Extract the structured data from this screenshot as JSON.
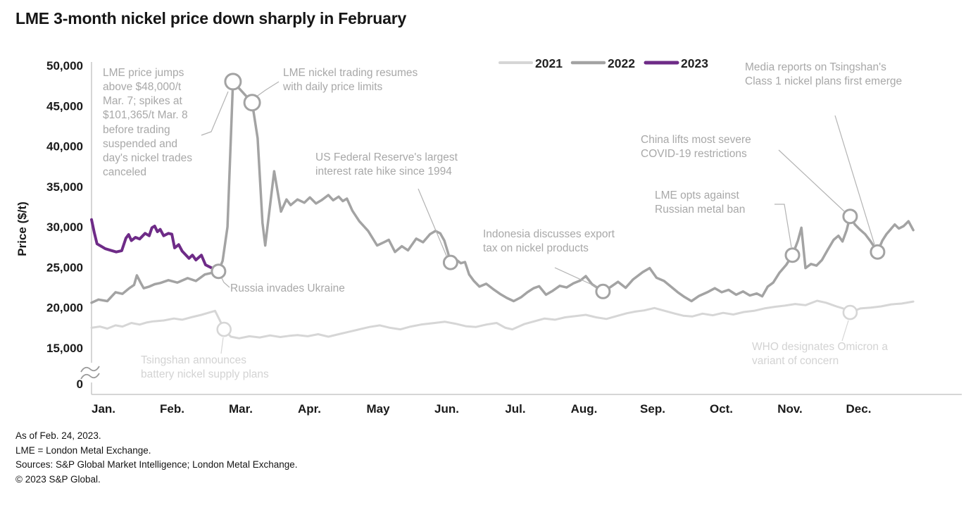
{
  "title": "LME 3-month nickel price down sharply in February",
  "colors": {
    "s2021": "#d6d6d6",
    "s2022": "#a3a3a3",
    "s2023": "#6e2b87",
    "axis": "#c9c9c9",
    "break_mark": "#9a9a9a",
    "text": "#1a1a1a",
    "annotation": "#a8a8a8",
    "annotation_light": "#d3d3d3",
    "leader": "#b3b3b3",
    "leader_light": "#d6d6d6"
  },
  "footer": {
    "lines": [
      "As of Feb. 24, 2023.",
      "LME = London Metal Exchange.",
      "Sources: S&P Global Market Intelligence; London Metal Exchange.",
      "© 2023 S&P Global."
    ]
  },
  "chart_data": {
    "type": "line",
    "title": "LME 3-month nickel price down sharply in February",
    "ylabel": "Price ($/t)",
    "xlabel": "",
    "ylim": [
      0,
      50000
    ],
    "axis_break": "between 0 and 15,000",
    "grid": false,
    "legend_position": "top-right",
    "y_ticks": [
      {
        "label": "50,000",
        "value": 50000
      },
      {
        "label": "45,000",
        "value": 45000
      },
      {
        "label": "40,000",
        "value": 40000
      },
      {
        "label": "35,000",
        "value": 35000
      },
      {
        "label": "30,000",
        "value": 30000
      },
      {
        "label": "25,000",
        "value": 25000
      },
      {
        "label": "20,000",
        "value": 20000
      },
      {
        "label": "15,000",
        "value": 15000
      },
      {
        "label": "0",
        "value": 0
      }
    ],
    "x_labels": [
      "Jan.",
      "Feb.",
      "Mar.",
      "Apr.",
      "May",
      "Jun.",
      "Jul.",
      "Aug.",
      "Sep.",
      "Oct.",
      "Nov.",
      "Dec."
    ],
    "series": [
      {
        "name": "2021",
        "color": "#d6d6d6",
        "width": 3,
        "points": [
          [
            0.0,
            17500
          ],
          [
            0.12,
            17650
          ],
          [
            0.23,
            17400
          ],
          [
            0.35,
            17800
          ],
          [
            0.45,
            17650
          ],
          [
            0.58,
            18100
          ],
          [
            0.7,
            17900
          ],
          [
            0.8,
            18150
          ],
          [
            0.9,
            18300
          ],
          [
            1.05,
            18400
          ],
          [
            1.2,
            18650
          ],
          [
            1.32,
            18500
          ],
          [
            1.45,
            18800
          ],
          [
            1.6,
            19100
          ],
          [
            1.72,
            19400
          ],
          [
            1.8,
            19600
          ],
          [
            1.87,
            18400
          ],
          [
            1.93,
            17300
          ],
          [
            2.03,
            16400
          ],
          [
            2.15,
            16200
          ],
          [
            2.3,
            16450
          ],
          [
            2.45,
            16300
          ],
          [
            2.6,
            16550
          ],
          [
            2.75,
            16350
          ],
          [
            2.88,
            16500
          ],
          [
            3.0,
            16600
          ],
          [
            3.15,
            16450
          ],
          [
            3.3,
            16700
          ],
          [
            3.45,
            16400
          ],
          [
            3.6,
            16700
          ],
          [
            3.75,
            17000
          ],
          [
            3.9,
            17300
          ],
          [
            4.05,
            17600
          ],
          [
            4.2,
            17800
          ],
          [
            4.35,
            17500
          ],
          [
            4.5,
            17300
          ],
          [
            4.65,
            17650
          ],
          [
            4.8,
            17900
          ],
          [
            5.0,
            18100
          ],
          [
            5.15,
            18250
          ],
          [
            5.3,
            18000
          ],
          [
            5.45,
            17700
          ],
          [
            5.6,
            17600
          ],
          [
            5.75,
            17900
          ],
          [
            5.9,
            18100
          ],
          [
            6.03,
            17500
          ],
          [
            6.13,
            17300
          ],
          [
            6.3,
            17950
          ],
          [
            6.45,
            18300
          ],
          [
            6.6,
            18650
          ],
          [
            6.75,
            18500
          ],
          [
            6.9,
            18800
          ],
          [
            7.05,
            18950
          ],
          [
            7.2,
            19100
          ],
          [
            7.35,
            18800
          ],
          [
            7.5,
            18600
          ],
          [
            7.65,
            18950
          ],
          [
            7.8,
            19300
          ],
          [
            7.92,
            19500
          ],
          [
            8.05,
            19650
          ],
          [
            8.2,
            19950
          ],
          [
            8.35,
            19600
          ],
          [
            8.5,
            19250
          ],
          [
            8.62,
            19000
          ],
          [
            8.75,
            18900
          ],
          [
            8.9,
            19250
          ],
          [
            9.05,
            19050
          ],
          [
            9.2,
            19350
          ],
          [
            9.35,
            19150
          ],
          [
            9.5,
            19450
          ],
          [
            9.65,
            19600
          ],
          [
            9.8,
            19900
          ],
          [
            9.95,
            20100
          ],
          [
            10.1,
            20250
          ],
          [
            10.25,
            20450
          ],
          [
            10.4,
            20300
          ],
          [
            10.57,
            20850
          ],
          [
            10.7,
            20600
          ],
          [
            10.85,
            20150
          ],
          [
            10.95,
            19900
          ],
          [
            11.05,
            19400
          ],
          [
            11.2,
            19900
          ],
          [
            11.35,
            20000
          ],
          [
            11.5,
            20150
          ],
          [
            11.65,
            20400
          ],
          [
            11.8,
            20500
          ],
          [
            11.97,
            20750
          ]
        ]
      },
      {
        "name": "2022",
        "color": "#a3a3a3",
        "width": 3.5,
        "points": [
          [
            0.0,
            20600
          ],
          [
            0.1,
            21000
          ],
          [
            0.23,
            20800
          ],
          [
            0.35,
            21900
          ],
          [
            0.45,
            21700
          ],
          [
            0.55,
            22400
          ],
          [
            0.62,
            22800
          ],
          [
            0.66,
            24000
          ],
          [
            0.72,
            23000
          ],
          [
            0.76,
            22400
          ],
          [
            0.84,
            22600
          ],
          [
            0.92,
            22900
          ],
          [
            1.0,
            23050
          ],
          [
            1.12,
            23400
          ],
          [
            1.25,
            23100
          ],
          [
            1.4,
            23650
          ],
          [
            1.52,
            23300
          ],
          [
            1.65,
            24100
          ],
          [
            1.75,
            24300
          ],
          [
            1.85,
            24500
          ],
          [
            1.91,
            25800
          ],
          [
            1.98,
            30000
          ],
          [
            2.06,
            48000
          ],
          [
            2.34,
            45400
          ],
          [
            2.42,
            41000
          ],
          [
            2.49,
            30500
          ],
          [
            2.53,
            27700
          ],
          [
            2.66,
            36900
          ],
          [
            2.76,
            31900
          ],
          [
            2.84,
            33400
          ],
          [
            2.9,
            32700
          ],
          [
            3.0,
            33400
          ],
          [
            3.1,
            33000
          ],
          [
            3.18,
            33650
          ],
          [
            3.27,
            32900
          ],
          [
            3.35,
            33300
          ],
          [
            3.45,
            33950
          ],
          [
            3.52,
            33300
          ],
          [
            3.6,
            33750
          ],
          [
            3.66,
            33200
          ],
          [
            3.72,
            33500
          ],
          [
            3.8,
            32000
          ],
          [
            3.9,
            30700
          ],
          [
            4.03,
            29500
          ],
          [
            4.16,
            27700
          ],
          [
            4.26,
            28100
          ],
          [
            4.33,
            28400
          ],
          [
            4.42,
            26900
          ],
          [
            4.52,
            27600
          ],
          [
            4.61,
            27100
          ],
          [
            4.73,
            28550
          ],
          [
            4.83,
            28100
          ],
          [
            4.93,
            29100
          ],
          [
            5.01,
            29500
          ],
          [
            5.08,
            29200
          ],
          [
            5.14,
            28300
          ],
          [
            5.19,
            26900
          ],
          [
            5.23,
            25600
          ],
          [
            5.31,
            25950
          ],
          [
            5.38,
            25500
          ],
          [
            5.44,
            25650
          ],
          [
            5.5,
            24100
          ],
          [
            5.57,
            23300
          ],
          [
            5.65,
            22600
          ],
          [
            5.75,
            22950
          ],
          [
            5.85,
            22300
          ],
          [
            5.95,
            21700
          ],
          [
            6.05,
            21200
          ],
          [
            6.15,
            20800
          ],
          [
            6.26,
            21300
          ],
          [
            6.35,
            21900
          ],
          [
            6.44,
            22400
          ],
          [
            6.52,
            22650
          ],
          [
            6.62,
            21600
          ],
          [
            6.72,
            22100
          ],
          [
            6.82,
            22700
          ],
          [
            6.92,
            22500
          ],
          [
            7.02,
            23000
          ],
          [
            7.12,
            23350
          ],
          [
            7.2,
            23900
          ],
          [
            7.29,
            22900
          ],
          [
            7.38,
            22400
          ],
          [
            7.45,
            22000
          ],
          [
            7.56,
            22550
          ],
          [
            7.67,
            23200
          ],
          [
            7.78,
            22450
          ],
          [
            7.89,
            23500
          ],
          [
            8.03,
            24400
          ],
          [
            8.13,
            24900
          ],
          [
            8.23,
            23700
          ],
          [
            8.34,
            23300
          ],
          [
            8.44,
            22600
          ],
          [
            8.54,
            21900
          ],
          [
            8.64,
            21300
          ],
          [
            8.74,
            20800
          ],
          [
            8.85,
            21450
          ],
          [
            8.97,
            21900
          ],
          [
            9.08,
            22400
          ],
          [
            9.18,
            21900
          ],
          [
            9.28,
            22200
          ],
          [
            9.39,
            21600
          ],
          [
            9.49,
            22000
          ],
          [
            9.59,
            21500
          ],
          [
            9.69,
            21750
          ],
          [
            9.77,
            21400
          ],
          [
            9.85,
            22600
          ],
          [
            9.93,
            23100
          ],
          [
            10.02,
            24300
          ],
          [
            10.12,
            25300
          ],
          [
            10.21,
            26500
          ],
          [
            10.29,
            28300
          ],
          [
            10.34,
            29900
          ],
          [
            10.4,
            24900
          ],
          [
            10.48,
            25400
          ],
          [
            10.56,
            25200
          ],
          [
            10.64,
            25900
          ],
          [
            10.72,
            27100
          ],
          [
            10.81,
            28400
          ],
          [
            10.88,
            28900
          ],
          [
            10.94,
            28200
          ],
          [
            11.0,
            29600
          ],
          [
            11.05,
            31300
          ],
          [
            11.12,
            30300
          ],
          [
            11.19,
            29700
          ],
          [
            11.27,
            29100
          ],
          [
            11.35,
            28200
          ],
          [
            11.45,
            26900
          ],
          [
            11.52,
            28300
          ],
          [
            11.58,
            29100
          ],
          [
            11.64,
            29700
          ],
          [
            11.7,
            30300
          ],
          [
            11.76,
            29800
          ],
          [
            11.83,
            30100
          ],
          [
            11.9,
            30700
          ],
          [
            11.97,
            29600
          ]
        ]
      },
      {
        "name": "2023",
        "color": "#6e2b87",
        "width": 4,
        "points": [
          [
            0.0,
            30900
          ],
          [
            0.04,
            29300
          ],
          [
            0.08,
            27900
          ],
          [
            0.14,
            27600
          ],
          [
            0.2,
            27300
          ],
          [
            0.28,
            27100
          ],
          [
            0.36,
            26900
          ],
          [
            0.44,
            27050
          ],
          [
            0.5,
            28600
          ],
          [
            0.54,
            29050
          ],
          [
            0.58,
            28300
          ],
          [
            0.64,
            28700
          ],
          [
            0.7,
            28500
          ],
          [
            0.78,
            29200
          ],
          [
            0.84,
            28900
          ],
          [
            0.88,
            29900
          ],
          [
            0.92,
            30100
          ],
          [
            0.96,
            29400
          ],
          [
            1.0,
            29700
          ],
          [
            1.05,
            28900
          ],
          [
            1.12,
            29200
          ],
          [
            1.17,
            29100
          ],
          [
            1.21,
            27400
          ],
          [
            1.27,
            27800
          ],
          [
            1.32,
            27000
          ],
          [
            1.42,
            26100
          ],
          [
            1.47,
            26500
          ],
          [
            1.52,
            25900
          ],
          [
            1.6,
            26500
          ],
          [
            1.66,
            25300
          ],
          [
            1.72,
            25050
          ],
          [
            1.78,
            24800
          ],
          [
            1.82,
            24600
          ]
        ]
      }
    ],
    "events": [
      {
        "id": "jumps",
        "series": "2022",
        "m": 2.06,
        "v": 48000,
        "r": 11,
        "label": "LME price jumps above $48,000/t Mar. 7; spikes at $101,365/t Mar. 8 before trading suspended and day's nickel trades canceled"
      },
      {
        "id": "resumes",
        "series": "2022",
        "m": 2.34,
        "v": 45400,
        "r": 11,
        "label": "LME nickel trading resumes with daily price limits"
      },
      {
        "id": "russia",
        "series": "2022",
        "m": 1.85,
        "v": 24500,
        "r": 9.5,
        "label": "Russia invades Ukraine"
      },
      {
        "id": "fed",
        "series": "2022",
        "m": 5.23,
        "v": 25600,
        "r": 9.5,
        "label": "US Federal Reserve's largest interest rate hike since 1994"
      },
      {
        "id": "indonesia",
        "series": "2022",
        "m": 7.45,
        "v": 22000,
        "r": 9.5,
        "label": "Indonesia discusses export tax on nickel products"
      },
      {
        "id": "lme-ban",
        "series": "2022",
        "m": 10.21,
        "v": 26500,
        "r": 9.5,
        "label": "LME opts against Russian metal ban"
      },
      {
        "id": "china",
        "series": "2022",
        "m": 11.05,
        "v": 31300,
        "r": 9.5,
        "label": "China lifts most severe COVID-19 restrictions"
      },
      {
        "id": "media",
        "series": "2022",
        "m": 11.45,
        "v": 26900,
        "r": 9.5,
        "label": "Media reports on Tsingshan's Class 1 nickel plans first emerge"
      },
      {
        "id": "tsingshan",
        "series": "2021",
        "m": 1.93,
        "v": 17300,
        "r": 9.5,
        "label": "Tsingshan announces battery nickel supply plans"
      },
      {
        "id": "who",
        "series": "2021",
        "m": 11.05,
        "v": 19400,
        "r": 9.5,
        "label": "WHO designates Omicron a variant of concern"
      }
    ]
  }
}
